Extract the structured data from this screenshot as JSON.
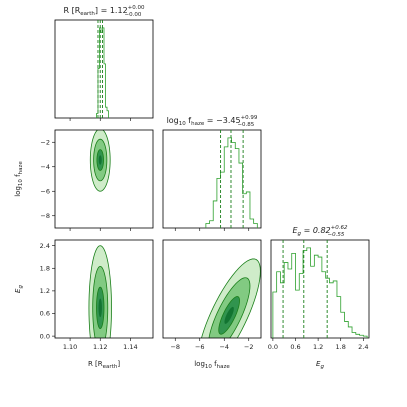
{
  "chart_data": {
    "type": "corner",
    "parameters": [
      {
        "id": "R",
        "axis_label_main": "R [R",
        "axis_label_sub": "earth",
        "axis_label_end": "]",
        "title_prefix": "R [R",
        "title_sub": "earth",
        "title_mid": "] = ",
        "median_text": "1.12",
        "plus_text": "+0.00",
        "minus_text": "−0.00",
        "range": [
          1.09,
          1.155
        ],
        "ticks": [
          1.1,
          1.12,
          1.14
        ],
        "tick_labels": [
          "1.10",
          "1.12",
          "1.14"
        ],
        "quantiles": [
          1.1185,
          1.12,
          1.1215
        ]
      },
      {
        "id": "log10_fhaze",
        "axis_label_main": "log",
        "axis_label_sub": "10",
        "axis_label_end": " f",
        "axis_label_sub2": "haze",
        "title_prefix": "log",
        "title_sub": "10",
        "title_mid": " f",
        "title_sub2": "haze",
        "title_eq": " = −3.45",
        "plus_text": "+0.99",
        "minus_text": "−0.85",
        "range": [
          -9.0,
          -1.0
        ],
        "ticks": [
          -8,
          -6,
          -4,
          -2
        ],
        "tick_labels": [
          "−8",
          "−6",
          "−4",
          "−2"
        ],
        "quantiles": [
          -4.3,
          -3.45,
          -2.46
        ]
      },
      {
        "id": "Eg",
        "axis_label_main": "E",
        "axis_label_sub": "g",
        "title_prefix": "E",
        "title_sub": "g",
        "title_eq": " = 0.82",
        "plus_text": "+0.62",
        "minus_text": "−0.55",
        "range": [
          -0.05,
          2.55
        ],
        "ticks": [
          0.0,
          0.6,
          1.2,
          1.8,
          2.4
        ],
        "tick_labels": [
          "0.0",
          "0.6",
          "1.2",
          "1.8",
          "2.4"
        ],
        "quantiles": [
          0.27,
          0.82,
          1.44
        ]
      }
    ],
    "y_axis_labels": {
      "row1": {
        "main": "log",
        "sub": "10",
        "end": " f",
        "sub2": "haze"
      },
      "row2": {
        "main": "E",
        "sub": "g"
      }
    },
    "histograms": {
      "R": {
        "bins": [
          1.1175,
          1.1185,
          1.1195,
          1.1205,
          1.1215,
          1.1225,
          1.1235,
          1.1245,
          1.1255
        ],
        "counts": [
          0.05,
          0.55,
          1.0,
          0.95,
          1.0,
          0.6,
          0.12,
          0.08
        ]
      },
      "log10_fhaze": {
        "bins": [
          -5.5,
          -5.2,
          -4.9,
          -4.6,
          -4.3,
          -4.0,
          -3.7,
          -3.4,
          -3.1,
          -2.8,
          -2.5,
          -2.2,
          -1.9,
          -1.6,
          -1.3
        ],
        "counts": [
          0.05,
          0.08,
          0.3,
          0.55,
          0.62,
          0.9,
          1.0,
          0.95,
          0.88,
          0.72,
          0.38,
          0.4,
          0.1,
          0.05
        ]
      },
      "Eg": {
        "bins": [
          0.0,
          0.1,
          0.2,
          0.3,
          0.4,
          0.5,
          0.6,
          0.7,
          0.8,
          0.9,
          1.0,
          1.1,
          1.2,
          1.3,
          1.4,
          1.5,
          1.6,
          1.7,
          1.8,
          1.9,
          2.0,
          2.1,
          2.2,
          2.3,
          2.4,
          2.5
        ],
        "counts": [
          0.5,
          0.72,
          0.6,
          0.82,
          0.75,
          0.92,
          0.52,
          0.7,
          0.95,
          0.98,
          0.78,
          0.9,
          0.88,
          0.72,
          0.65,
          0.6,
          0.62,
          0.45,
          0.28,
          0.18,
          0.12,
          0.06,
          0.04,
          0.03,
          0.02
        ]
      }
    },
    "contours_2d": {
      "row1_col0": {
        "x_param": "R",
        "y_param": "log10_fhaze",
        "center": [
          1.12,
          -3.45
        ],
        "sigma": [
          0.0022,
          0.85
        ],
        "rho": 0.0
      },
      "row2_col0": {
        "x_param": "R",
        "y_param": "Eg",
        "center": [
          1.12,
          0.75
        ],
        "sigma": [
          0.0025,
          0.55
        ],
        "rho": 0.0
      },
      "row2_col1": {
        "x_param": "log10_fhaze",
        "y_param": "Eg",
        "center": [
          -3.6,
          0.55
        ],
        "sigma": [
          0.85,
          0.5
        ],
        "rho": 0.78
      }
    },
    "levels_sigma": [
      1,
      2,
      3
    ],
    "colors": {
      "line": "#2ca02c",
      "quantile": "#1a7f1a",
      "fill_levels": [
        "#c7e9c0",
        "#74c476",
        "#238b45"
      ]
    }
  }
}
